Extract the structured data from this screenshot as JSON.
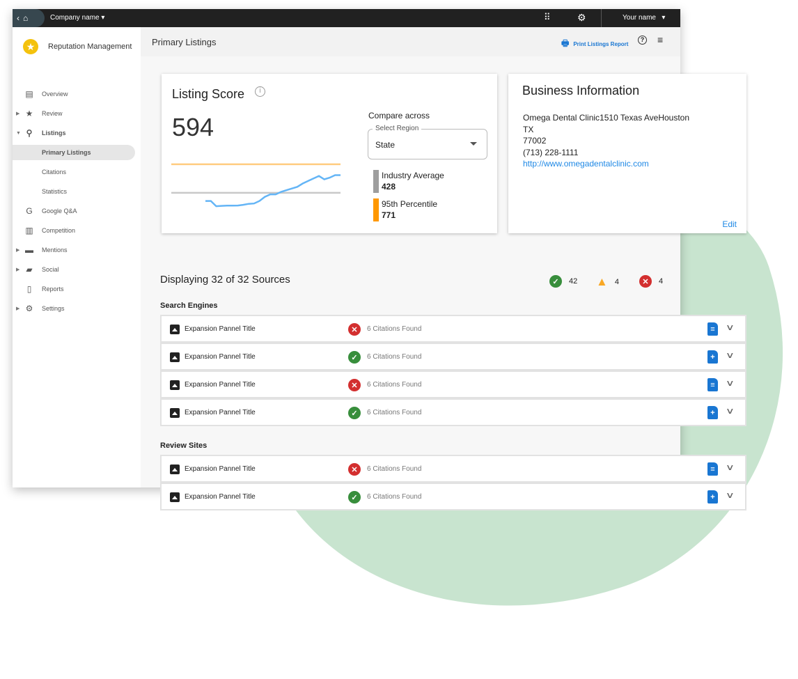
{
  "topbar": {
    "company": "Company name",
    "user": "Your name"
  },
  "sidebar": {
    "app_name": "Reputation Management",
    "items": [
      {
        "label": "Overview",
        "icon": "dashboard-icon",
        "expander": false
      },
      {
        "label": "Review",
        "icon": "star-icon",
        "expander": true
      },
      {
        "label": "Listings",
        "icon": "location-pin-icon",
        "expander": true,
        "expanded": true
      },
      {
        "label": "Primary Listings",
        "sub": true,
        "active": true
      },
      {
        "label": "Citations",
        "sub": true
      },
      {
        "label": "Statistics",
        "sub": true
      },
      {
        "label": "Google Q&A",
        "icon": "google-icon",
        "expander": false
      },
      {
        "label": "Competition",
        "icon": "bar-chart-icon",
        "expander": false
      },
      {
        "label": "Mentions",
        "icon": "chat-bubble-icon",
        "expander": true
      },
      {
        "label": "Social",
        "icon": "forum-icon",
        "expander": true
      },
      {
        "label": "Reports",
        "icon": "document-icon",
        "expander": false
      },
      {
        "label": "Settings",
        "icon": "settings-icon",
        "expander": true
      }
    ]
  },
  "header": {
    "title": "Primary Listings",
    "print_label": "Print Listings Report"
  },
  "score": {
    "title": "Listing Score",
    "value": "594",
    "compare_label": "Compare across",
    "select_label": "Select Region",
    "select_value": "State",
    "legend": [
      {
        "label": "Industry Average",
        "value": "428",
        "color": "#9e9e9e"
      },
      {
        "label": "95th Percentile",
        "value": "771",
        "color": "#ff9800"
      }
    ]
  },
  "chart_data": {
    "type": "line",
    "ylim": [
      235,
      820
    ],
    "grid": false,
    "reference_lines": [
      {
        "value": 771,
        "color": "#ffcc80"
      },
      {
        "value": 428,
        "color": "#c8c8c8"
      }
    ],
    "series": [
      {
        "color": "#64b5f6",
        "values": [
          330,
          330,
          268,
          272,
          274,
          274,
          276,
          284,
          296,
          300,
          330,
          380,
          410,
          410,
          440,
          460,
          480,
          500,
          540,
          570,
          600,
          630,
          590,
          610,
          640,
          640
        ]
      }
    ]
  },
  "business": {
    "title": "Business Information",
    "line1": "Omega Dental Clinic1510 Texas AveHouston",
    "line2": "TX",
    "line3": "77002",
    "phone": "(713) 228-1111",
    "url": "http://www.omegadentalclinic.com",
    "edit": "Edit"
  },
  "sources": {
    "heading": "Displaying 32 of 32 Sources",
    "ok": "42",
    "warning": "4",
    "error": "4",
    "colors": {
      "ok": "#388e3c",
      "warning": "#f9a825",
      "error": "#d32f2f"
    },
    "groups": [
      {
        "title": "Search Engines",
        "rows": [
          {
            "title": "Expansion Pannel Title",
            "status": "error",
            "citations": "6 Citations Found"
          },
          {
            "title": "Expansion Pannel Title",
            "status": "ok",
            "citations": "6 Citations Found"
          },
          {
            "title": "Expansion Pannel Title",
            "status": "error",
            "citations": "6 Citations Found"
          },
          {
            "title": "Expansion Pannel Title",
            "status": "ok",
            "citations": "6 Citations Found"
          }
        ]
      },
      {
        "title": "Review Sites",
        "rows": [
          {
            "title": "Expansion Pannel Title",
            "status": "error",
            "citations": "6 Citations Found"
          },
          {
            "title": "Expansion Pannel Title",
            "status": "ok",
            "citations": "6 Citations Found"
          }
        ]
      }
    ]
  }
}
